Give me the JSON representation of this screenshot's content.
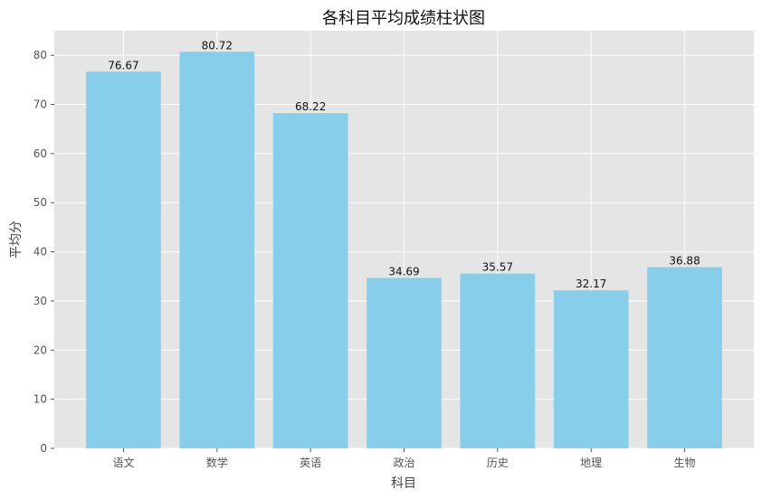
{
  "chart_data": {
    "type": "bar",
    "title": "各科目平均成绩柱状图",
    "xlabel": "科目",
    "ylabel": "平均分",
    "categories": [
      "语文",
      "数学",
      "英语",
      "政治",
      "历史",
      "地理",
      "生物"
    ],
    "values": [
      76.67,
      80.72,
      68.22,
      34.69,
      35.57,
      32.17,
      36.88
    ],
    "data_labels": [
      "76.67",
      "80.72",
      "68.22",
      "34.69",
      "35.57",
      "32.17",
      "36.88"
    ],
    "ylim": [
      0,
      85
    ],
    "yticks": [
      0,
      10,
      20,
      30,
      40,
      50,
      60,
      70,
      80
    ],
    "grid": true,
    "bar_color": "#87CEEB",
    "plot_background": "#E5E5E5",
    "grid_color": "#FFFFFF"
  }
}
